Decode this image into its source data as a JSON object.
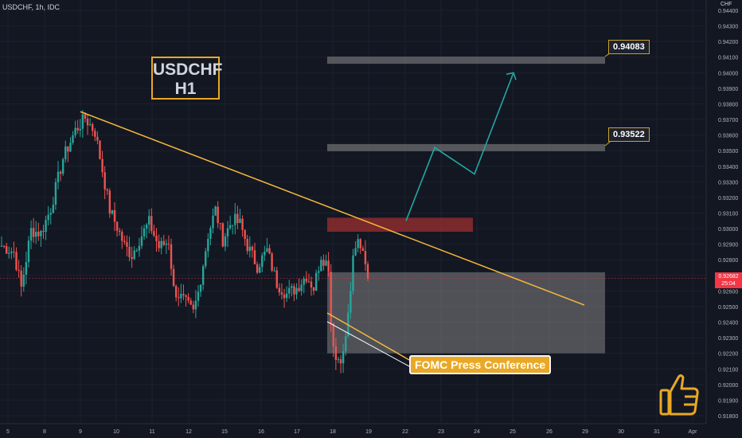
{
  "header": {
    "symbol_line": "USDCHF, 1h, IDC"
  },
  "currency": "CHF",
  "symbol_box": {
    "line1": "USDCHF",
    "line2": "H1"
  },
  "levels": [
    "0.94083",
    "0.93522"
  ],
  "annotation": "FOMC Press Conference",
  "current_price": {
    "value": "0.92682",
    "countdown": "25:04"
  },
  "colors": {
    "bg": "#131722",
    "up": "#26a69a",
    "down": "#ef5350",
    "trend": "#f5b83b",
    "gold": "#e9a825",
    "zone_red": "#9c2f2f",
    "zone_gray": "#8c8c8c",
    "projection": "#22a7a0",
    "price_line": "#f23645"
  },
  "chart_data": {
    "type": "candlestick",
    "y_axis": {
      "ticks": [
        "0.94400",
        "0.94300",
        "0.94200",
        "0.94100",
        "0.94000",
        "0.93900",
        "0.93800",
        "0.93700",
        "0.93600",
        "0.93500",
        "0.93400",
        "0.93300",
        "0.93200",
        "0.93100",
        "0.93000",
        "0.92900",
        "0.92800",
        "0.92700",
        "0.92600",
        "0.92500",
        "0.92400",
        "0.92300",
        "0.92200",
        "0.92100",
        "0.92000",
        "0.91900",
        "0.91800"
      ]
    },
    "x_axis": {
      "ticks": [
        "5",
        "8",
        "9",
        "10",
        "11",
        "12",
        "15",
        "16",
        "17",
        "18",
        "19",
        "22",
        "23",
        "24",
        "25",
        "26",
        "29",
        "30",
        "31",
        "Apr"
      ]
    },
    "series_shape": [
      [
        0,
        0.9289
      ],
      [
        5,
        0.9285
      ],
      [
        8,
        0.9262
      ],
      [
        12,
        0.9299
      ],
      [
        16,
        0.9297
      ],
      [
        20,
        0.9313
      ],
      [
        25,
        0.9345
      ],
      [
        30,
        0.9363
      ],
      [
        34,
        0.9371
      ],
      [
        38,
        0.9362
      ],
      [
        40,
        0.9346
      ],
      [
        44,
        0.9312
      ],
      [
        47,
        0.9301
      ],
      [
        50,
        0.9289
      ],
      [
        53,
        0.9283
      ],
      [
        56,
        0.9293
      ],
      [
        60,
        0.9304
      ],
      [
        64,
        0.9288
      ],
      [
        68,
        0.9292
      ],
      [
        70,
        0.9261
      ],
      [
        74,
        0.9254
      ],
      [
        78,
        0.9246
      ],
      [
        80,
        0.9259
      ],
      [
        84,
        0.9296
      ],
      [
        87,
        0.9312
      ],
      [
        90,
        0.9293
      ],
      [
        94,
        0.9306
      ],
      [
        97,
        0.9303
      ],
      [
        100,
        0.9289
      ],
      [
        104,
        0.9276
      ],
      [
        108,
        0.9286
      ],
      [
        112,
        0.9265
      ],
      [
        116,
        0.9258
      ],
      [
        120,
        0.9262
      ],
      [
        124,
        0.927
      ],
      [
        127,
        0.9262
      ],
      [
        130,
        0.9283
      ],
      [
        133,
        0.9276
      ],
      [
        134,
        0.924
      ],
      [
        136,
        0.9216
      ],
      [
        139,
        0.9219
      ],
      [
        141,
        0.9244
      ],
      [
        143,
        0.9279
      ],
      [
        145,
        0.9292
      ],
      [
        147,
        0.9287
      ],
      [
        148,
        0.9281
      ],
      [
        149,
        0.9268
      ]
    ],
    "trendline": [
      [
        9.0,
        0.9375
      ],
      [
        23.0,
        0.9251
      ]
    ],
    "zones": [
      {
        "kind": "resistance",
        "y1": 0.9298,
        "y2": 0.9307
      },
      {
        "kind": "demand",
        "y1": 0.922,
        "y2": 0.9272
      },
      {
        "kind": "level",
        "y1": 0.94083,
        "y2": 0.94083
      },
      {
        "kind": "level",
        "y1": 0.93522,
        "y2": 0.93522
      }
    ],
    "projection": [
      [
        0.9305
      ],
      [
        0.9352
      ],
      [
        0.9335
      ],
      [
        0.94
      ]
    ],
    "current": 0.92682
  }
}
